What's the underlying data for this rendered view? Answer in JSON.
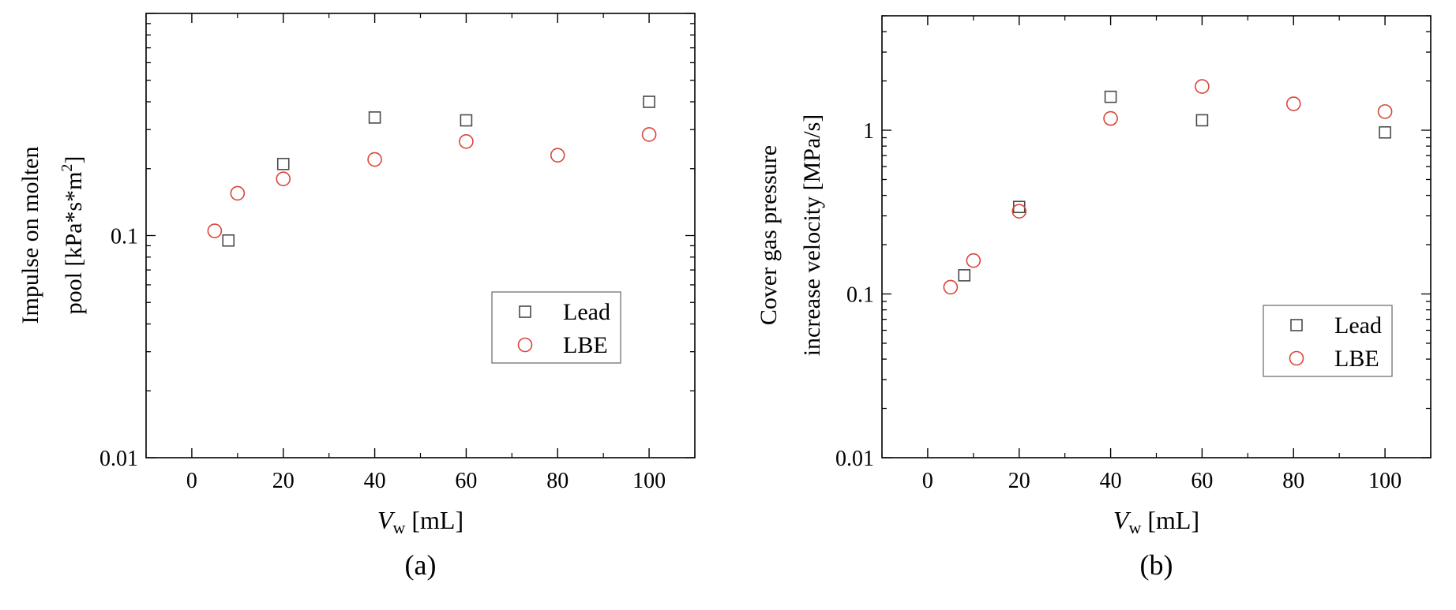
{
  "chart_data": [
    {
      "type": "scatter",
      "panel_label": "(a)",
      "xlabel_main": "V",
      "xlabel_sub": "w",
      "xlabel_unit": " [mL]",
      "ylabel_lines": [
        "Impulse on molten",
        "pool [kPa*s*m",
        "]"
      ],
      "ylabel_sup": "2",
      "xlim": [
        -10,
        110
      ],
      "ylim": [
        0.01,
        1
      ],
      "yscale": "log",
      "x_ticks": [
        0,
        20,
        40,
        60,
        80,
        100
      ],
      "x_tick_labels": [
        "0",
        "20",
        "40",
        "60",
        "80",
        "100"
      ],
      "y_ticks": [
        0.01,
        0.1
      ],
      "y_tick_labels": [
        "0.01",
        "0.1"
      ],
      "legend_position": "bottom-right",
      "series": [
        {
          "name": "Lead",
          "marker": "square",
          "color": "#4a4a4a",
          "x": [
            8,
            20,
            40,
            60,
            100
          ],
          "y": [
            0.095,
            0.21,
            0.34,
            0.33,
            0.4
          ]
        },
        {
          "name": "LBE",
          "marker": "circle",
          "color": "#d9463a",
          "x": [
            5,
            10,
            20,
            40,
            60,
            80,
            100
          ],
          "y": [
            0.105,
            0.155,
            0.18,
            0.22,
            0.265,
            0.23,
            0.285
          ]
        }
      ]
    },
    {
      "type": "scatter",
      "panel_label": "(b)",
      "xlabel_main": "V",
      "xlabel_sub": "w",
      "xlabel_unit": " [mL]",
      "ylabel_lines": [
        "Cover gas pressure",
        "increase velocity [MPa/s]"
      ],
      "xlim": [
        -10,
        110
      ],
      "ylim": [
        0.01,
        5
      ],
      "yscale": "log",
      "x_ticks": [
        0,
        20,
        40,
        60,
        80,
        100
      ],
      "x_tick_labels": [
        "0",
        "20",
        "40",
        "60",
        "80",
        "100"
      ],
      "y_ticks": [
        0.01,
        0.1,
        1
      ],
      "y_tick_labels": [
        "0.01",
        "0.1",
        "1"
      ],
      "legend_position": "bottom-right",
      "series": [
        {
          "name": "Lead",
          "marker": "square",
          "color": "#4a4a4a",
          "x": [
            8,
            20,
            40,
            60,
            100
          ],
          "y": [
            0.13,
            0.34,
            1.6,
            1.15,
            0.97
          ]
        },
        {
          "name": "LBE",
          "marker": "circle",
          "color": "#d9463a",
          "x": [
            5,
            10,
            20,
            40,
            60,
            80,
            100
          ],
          "y": [
            0.11,
            0.16,
            0.32,
            1.18,
            1.85,
            1.45,
            1.3
          ]
        }
      ]
    }
  ]
}
